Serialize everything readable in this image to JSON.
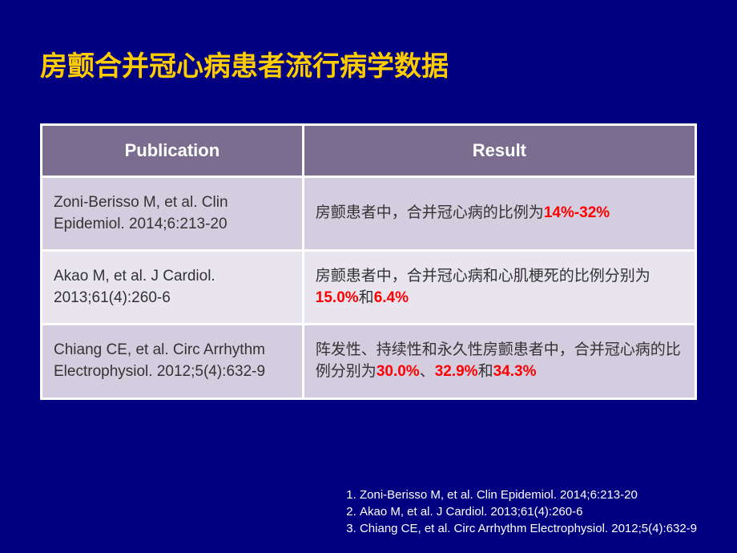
{
  "title": "房颤合并冠心病患者流行病学数据",
  "table": {
    "headers": {
      "publication": "Publication",
      "result": "Result"
    },
    "rows": [
      {
        "publication": "Zoni-Berisso M, et al. Clin Epidemiol. 2014;6:213-20",
        "result_prefix": "房颤患者中，合并冠心病的比例为",
        "result_highlight1": "14%-32%"
      },
      {
        "publication": "Akao M, et al. J Cardiol. 2013;61(4):260-6",
        "result_prefix": "房颤患者中，合并冠心病和心肌梗死的比例分别为",
        "result_highlight1": "15.0%",
        "result_mid1": "和",
        "result_highlight2": "6.4%"
      },
      {
        "publication": "Chiang CE, et al. Circ Arrhythm Electrophysiol. 2012;5(4):632-9",
        "result_prefix": "阵发性、持续性和永久性房颤患者中，合并冠心病的比例分别为",
        "result_highlight1": "30.0%",
        "result_mid1": "、",
        "result_highlight2": "32.9%",
        "result_mid2": "和",
        "result_highlight3": "34.3%"
      }
    ]
  },
  "references": [
    "Zoni-Berisso M, et al. Clin Epidemiol. 2014;6:213-20",
    "Akao M, et al. J Cardiol. 2013;61(4):260-6",
    "Chiang CE, et al. Circ Arrhythm Electrophysiol. 2012;5(4):632-9"
  ],
  "styling": {
    "background_color": "#000080",
    "title_color": "#ffcc00",
    "title_fontsize": 34,
    "header_bg": "#7b6d90",
    "header_color": "#ffffff",
    "header_fontsize": 22,
    "row_odd_bg": "#d4cddf",
    "row_even_bg": "#e9e5ef",
    "cell_color": "#333333",
    "cell_fontsize": 19,
    "highlight_color": "#ff0000",
    "reference_color": "#ffffff",
    "reference_fontsize": 15,
    "border_color": "#ffffff",
    "border_width": 3
  }
}
